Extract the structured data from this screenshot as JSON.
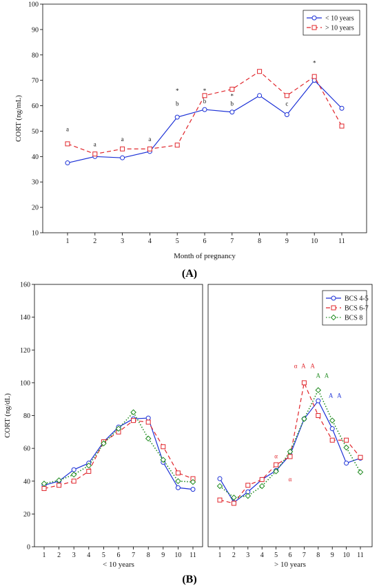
{
  "chart_data": [
    {
      "type": "line",
      "panel_label": "(A)",
      "xlabel": "Month of pregnancy",
      "ylabel": "CORT (ng/mL)",
      "ylim": [
        10,
        100
      ],
      "yticks": [
        10,
        20,
        30,
        40,
        50,
        60,
        70,
        80,
        90,
        100
      ],
      "xticks": [
        1,
        2,
        3,
        4,
        5,
        6,
        7,
        8,
        9,
        10,
        11
      ],
      "legend_position": "top-right",
      "series": [
        {
          "name": "< 10 years",
          "color": "#1a2fd6",
          "style": "solid",
          "marker": "circle",
          "x": [
            1,
            2,
            3,
            4,
            5,
            6,
            7,
            8,
            9,
            10,
            11
          ],
          "values": [
            37.5,
            40,
            39.5,
            42,
            55.5,
            58.5,
            57.5,
            64,
            56.5,
            70,
            59
          ]
        },
        {
          "name": "> 10 years",
          "color": "#e0242a",
          "style": "dashed",
          "marker": "square",
          "x": [
            1,
            2,
            3,
            4,
            5,
            6,
            7,
            8,
            9,
            10,
            11
          ],
          "values": [
            45,
            41,
            43,
            43,
            44.5,
            64,
            66.5,
            73.5,
            64,
            71.5,
            52
          ]
        }
      ],
      "annotations": [
        {
          "text": "a",
          "x": 1,
          "y": 50
        },
        {
          "text": "a",
          "x": 2,
          "y": 44
        },
        {
          "text": "a",
          "x": 3,
          "y": 46
        },
        {
          "text": "a",
          "x": 4,
          "y": 46
        },
        {
          "text": "*",
          "x": 5,
          "y": 65
        },
        {
          "text": "b",
          "x": 5,
          "y": 60
        },
        {
          "text": "*",
          "x": 6,
          "y": 65
        },
        {
          "text": "b",
          "x": 6,
          "y": 61
        },
        {
          "text": "*",
          "x": 7,
          "y": 63
        },
        {
          "text": "b",
          "x": 7,
          "y": 60
        },
        {
          "text": "c",
          "x": 9,
          "y": 60
        },
        {
          "text": "*",
          "x": 10,
          "y": 76
        }
      ]
    },
    {
      "type": "line",
      "panel_label": "(B)",
      "ylabel": "CORT (ng/dL)",
      "ylim": [
        0,
        160
      ],
      "yticks": [
        0,
        20,
        40,
        60,
        80,
        100,
        120,
        140,
        160
      ],
      "xticks": [
        1,
        2,
        3,
        4,
        5,
        6,
        7,
        8,
        9,
        10,
        11
      ],
      "legend_position": "top-right",
      "subplots": [
        {
          "xlabel": "< 10 years",
          "series": [
            {
              "name": "BCS 4-5",
              "color": "#1a2fd6",
              "style": "solid",
              "marker": "circle",
              "x": [
                1,
                2,
                3,
                4,
                5,
                6,
                7,
                8,
                9,
                10,
                11
              ],
              "values": [
                37.5,
                40,
                47,
                51,
                64,
                73,
                78,
                78.5,
                51.5,
                36,
                35
              ]
            },
            {
              "name": "BCS 6-7",
              "color": "#e0242a",
              "style": "dashed",
              "marker": "square",
              "x": [
                1,
                2,
                3,
                4,
                5,
                6,
                7,
                8,
                9,
                10,
                11
              ],
              "values": [
                35.5,
                37.5,
                40,
                46,
                64,
                70,
                77,
                76,
                61,
                45,
                41.5
              ]
            },
            {
              "name": "BCS 8",
              "color": "#1e8a1e",
              "style": "dotted",
              "marker": "diamond",
              "x": [
                1,
                2,
                3,
                4,
                5,
                6,
                7,
                8,
                9,
                10,
                11
              ],
              "values": [
                38.5,
                40.5,
                44,
                49.5,
                63,
                72,
                82,
                66,
                53,
                40,
                39.5
              ]
            }
          ],
          "annotations": []
        },
        {
          "xlabel": "> 10 years",
          "series": [
            {
              "name": "BCS 4-5",
              "color": "#1a2fd6",
              "style": "solid",
              "marker": "circle",
              "x": [
                1,
                2,
                3,
                4,
                5,
                6,
                7,
                8,
                9,
                10,
                11
              ],
              "values": [
                41.5,
                27,
                33.5,
                41,
                46.5,
                56,
                78,
                89,
                72,
                51,
                54
              ]
            },
            {
              "name": "BCS 6-7",
              "color": "#e0242a",
              "style": "dashed",
              "marker": "square",
              "x": [
                1,
                2,
                3,
                4,
                5,
                6,
                7,
                8,
                9,
                10,
                11
              ],
              "values": [
                28.5,
                26.5,
                37.5,
                41,
                50,
                55,
                100,
                80,
                65,
                65,
                54.5
              ]
            },
            {
              "name": "BCS 8",
              "color": "#1e8a1e",
              "style": "dotted",
              "marker": "diamond",
              "x": [
                1,
                2,
                3,
                4,
                5,
                6,
                7,
                8,
                9,
                10,
                11
              ],
              "values": [
                37,
                30,
                31,
                37,
                46,
                58,
                78,
                95.5,
                77,
                60.5,
                45.5
              ]
            }
          ],
          "annotations": [
            {
              "text": "α",
              "x": 5,
              "y": 54,
              "color": "#e0242a"
            },
            {
              "text": "α",
              "x": 6,
              "y": 40,
              "color": "#e0242a"
            },
            {
              "text": "α",
              "x": 6.4,
              "y": 109,
              "color": "#e0242a"
            },
            {
              "text": "A",
              "x": 6.95,
              "y": 109,
              "color": "#e0242a"
            },
            {
              "text": "A",
              "x": 7.6,
              "y": 109,
              "color": "#e0242a"
            },
            {
              "text": "A",
              "x": 8,
              "y": 103,
              "color": "#1e8a1e"
            },
            {
              "text": "A",
              "x": 8.6,
              "y": 103,
              "color": "#1e8a1e"
            },
            {
              "text": "A",
              "x": 8.9,
              "y": 91,
              "color": "#1a2fd6"
            },
            {
              "text": "A",
              "x": 9.5,
              "y": 91,
              "color": "#1a2fd6"
            }
          ]
        }
      ]
    }
  ]
}
